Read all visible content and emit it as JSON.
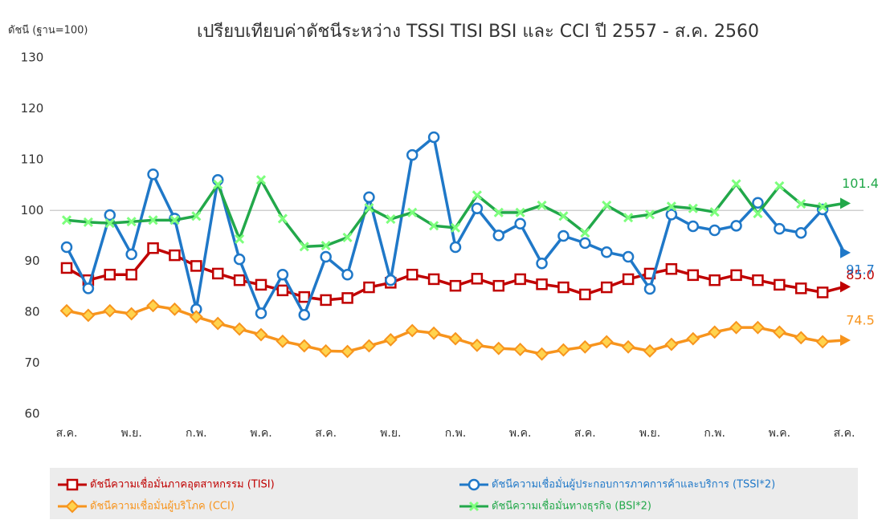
{
  "chart_data": {
    "type": "line",
    "title": "เปรียบเทียบค่าดัชนีระหว่าง TSSI TISI BSI และ CCI ปี 2557 - ส.ค. 2560",
    "y_label": "ดัชนี (ฐาน=100)",
    "categories": [
      "ส.ค.",
      null,
      null,
      "พ.ย.",
      null,
      null,
      "ก.พ.",
      null,
      null,
      "พ.ค.",
      null,
      null,
      "ส.ค.",
      null,
      null,
      "พ.ย.",
      null,
      null,
      "ก.พ.",
      null,
      null,
      "พ.ค.",
      null,
      null,
      "ส.ค.",
      null,
      null,
      "พ.ย.",
      null,
      null,
      "ก.พ.",
      null,
      null,
      "พ.ค.",
      null,
      null,
      "ส.ค."
    ],
    "ylim": [
      60,
      130
    ],
    "yticks": [
      60,
      70,
      80,
      90,
      100,
      110,
      120,
      130
    ],
    "hline": 100,
    "series": [
      {
        "name": "ดัชนีความเชื่อมั่นภาคอุตสาหกรรม (TISI)",
        "color": "#c00000",
        "marker": "square",
        "values": [
          88.7,
          86.3,
          87.4,
          87.4,
          92.6,
          91.2,
          89.1,
          87.6,
          86.3,
          85.4,
          84.3,
          83.0,
          82.4,
          82.8,
          84.9,
          85.8,
          87.4,
          86.5,
          85.2,
          86.6,
          85.2,
          86.5,
          85.5,
          84.9,
          83.5,
          84.9,
          86.5,
          87.6,
          88.5,
          87.3,
          86.3,
          87.3,
          86.3,
          85.4,
          84.7,
          83.9,
          85.0
        ],
        "value_labels": [
          null,
          null,
          null,
          null,
          null,
          null,
          null,
          null,
          null,
          null,
          null,
          null,
          null,
          null,
          null,
          null,
          null,
          null,
          null,
          null,
          null,
          null,
          null,
          null,
          null,
          null,
          null,
          null,
          null,
          null,
          null,
          null,
          null,
          null,
          null,
          null,
          "85.0"
        ]
      },
      {
        "name": "ดัชนีความเชื่อมั่นผู้ประกอบการภาคการค้าและบริการ (TSSI*2)",
        "color": "#1f78c8",
        "marker": "circle",
        "values": [
          92.8,
          84.7,
          99.1,
          91.4,
          107.1,
          98.4,
          80.6,
          106.0,
          90.4,
          79.8,
          87.4,
          79.5,
          90.9,
          87.4,
          102.6,
          86.3,
          110.9,
          114.4,
          92.8,
          100.4,
          95.1,
          97.4,
          89.6,
          95.0,
          93.6,
          91.8,
          90.9,
          84.6,
          99.2,
          96.9,
          96.1,
          97.0,
          101.5,
          96.4,
          95.6,
          100.2,
          91.7
        ],
        "value_labels": [
          null,
          null,
          null,
          null,
          null,
          null,
          null,
          null,
          null,
          null,
          null,
          null,
          null,
          null,
          null,
          null,
          null,
          null,
          null,
          null,
          null,
          null,
          null,
          null,
          null,
          null,
          null,
          null,
          null,
          null,
          null,
          null,
          null,
          null,
          null,
          null,
          "91.7"
        ]
      },
      {
        "name": "ดัชนีความเชื่อมั่นผู้บริโภค (CCI)",
        "color": "#f7941d",
        "marker": "diamond",
        "values": [
          80.3,
          79.4,
          80.3,
          79.7,
          81.3,
          80.6,
          79.1,
          77.8,
          76.7,
          75.6,
          74.3,
          73.4,
          72.4,
          72.3,
          73.4,
          74.6,
          76.4,
          75.9,
          74.8,
          73.5,
          72.9,
          72.7,
          71.8,
          72.6,
          73.2,
          74.2,
          73.2,
          72.4,
          73.7,
          74.8,
          76.1,
          77.0,
          77.0,
          76.1,
          75.0,
          74.2,
          74.5
        ],
        "value_labels": [
          null,
          null,
          null,
          null,
          null,
          null,
          null,
          null,
          null,
          null,
          null,
          null,
          null,
          null,
          null,
          null,
          null,
          null,
          null,
          null,
          null,
          null,
          null,
          null,
          null,
          null,
          null,
          null,
          null,
          null,
          null,
          null,
          null,
          null,
          null,
          null,
          "74.5"
        ]
      },
      {
        "name": "ดัชนีความเชื่อมั่นทางธุรกิจ (BSI*2)",
        "color": "#22a84a",
        "marker": "x",
        "values": [
          98.1,
          97.7,
          97.5,
          97.8,
          98.1,
          98.1,
          98.9,
          105.1,
          94.4,
          106.0,
          98.4,
          92.9,
          93.1,
          94.7,
          100.5,
          98.3,
          99.6,
          97.0,
          96.6,
          103.0,
          99.6,
          99.6,
          101.0,
          98.9,
          95.6,
          101.0,
          98.6,
          99.2,
          100.8,
          100.4,
          99.7,
          105.2,
          99.4,
          104.8,
          101.3,
          100.7,
          101.4
        ],
        "value_labels": [
          null,
          null,
          null,
          null,
          null,
          null,
          null,
          null,
          null,
          null,
          null,
          null,
          null,
          null,
          null,
          null,
          null,
          null,
          null,
          null,
          null,
          null,
          null,
          null,
          null,
          null,
          null,
          null,
          null,
          null,
          null,
          null,
          null,
          null,
          null,
          null,
          "101.4"
        ]
      }
    ]
  }
}
